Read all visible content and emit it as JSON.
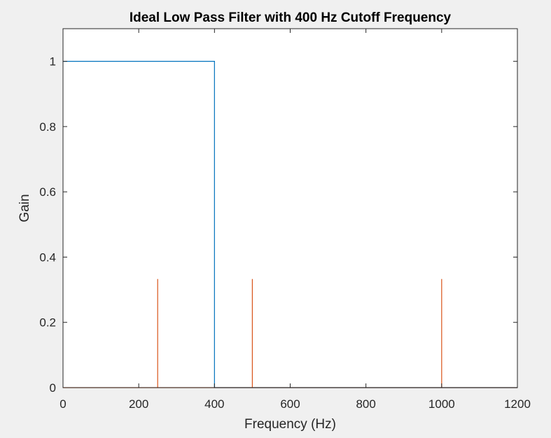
{
  "chart_data": {
    "type": "line",
    "title": "Ideal Low Pass Filter with 400 Hz Cutoff Frequency",
    "xlabel": "Frequency (Hz)",
    "ylabel": "Gain",
    "xlim": [
      0,
      1200
    ],
    "ylim": [
      0,
      1.1
    ],
    "xticks": [
      0,
      200,
      400,
      600,
      800,
      1000,
      1200
    ],
    "yticks": [
      0,
      0.2,
      0.4,
      0.6,
      0.8,
      1
    ],
    "xtick_labels": [
      "0",
      "200",
      "400",
      "600",
      "800",
      "1000",
      "1200"
    ],
    "ytick_labels": [
      "0",
      "0.2",
      "0.4",
      "0.6",
      "0.8",
      "1"
    ],
    "grid": false,
    "series": [
      {
        "color": "#0072BD",
        "x": [
          0,
          400,
          400,
          1200
        ],
        "y": [
          1,
          1,
          0,
          0
        ]
      },
      {
        "color": "#D95319",
        "x": [
          0,
          250,
          250,
          250,
          500,
          500,
          500,
          1000,
          1000,
          1000,
          1200
        ],
        "y": [
          0,
          0,
          0.333,
          0,
          0,
          0.333,
          0,
          0,
          0.333,
          0,
          0
        ]
      }
    ]
  }
}
